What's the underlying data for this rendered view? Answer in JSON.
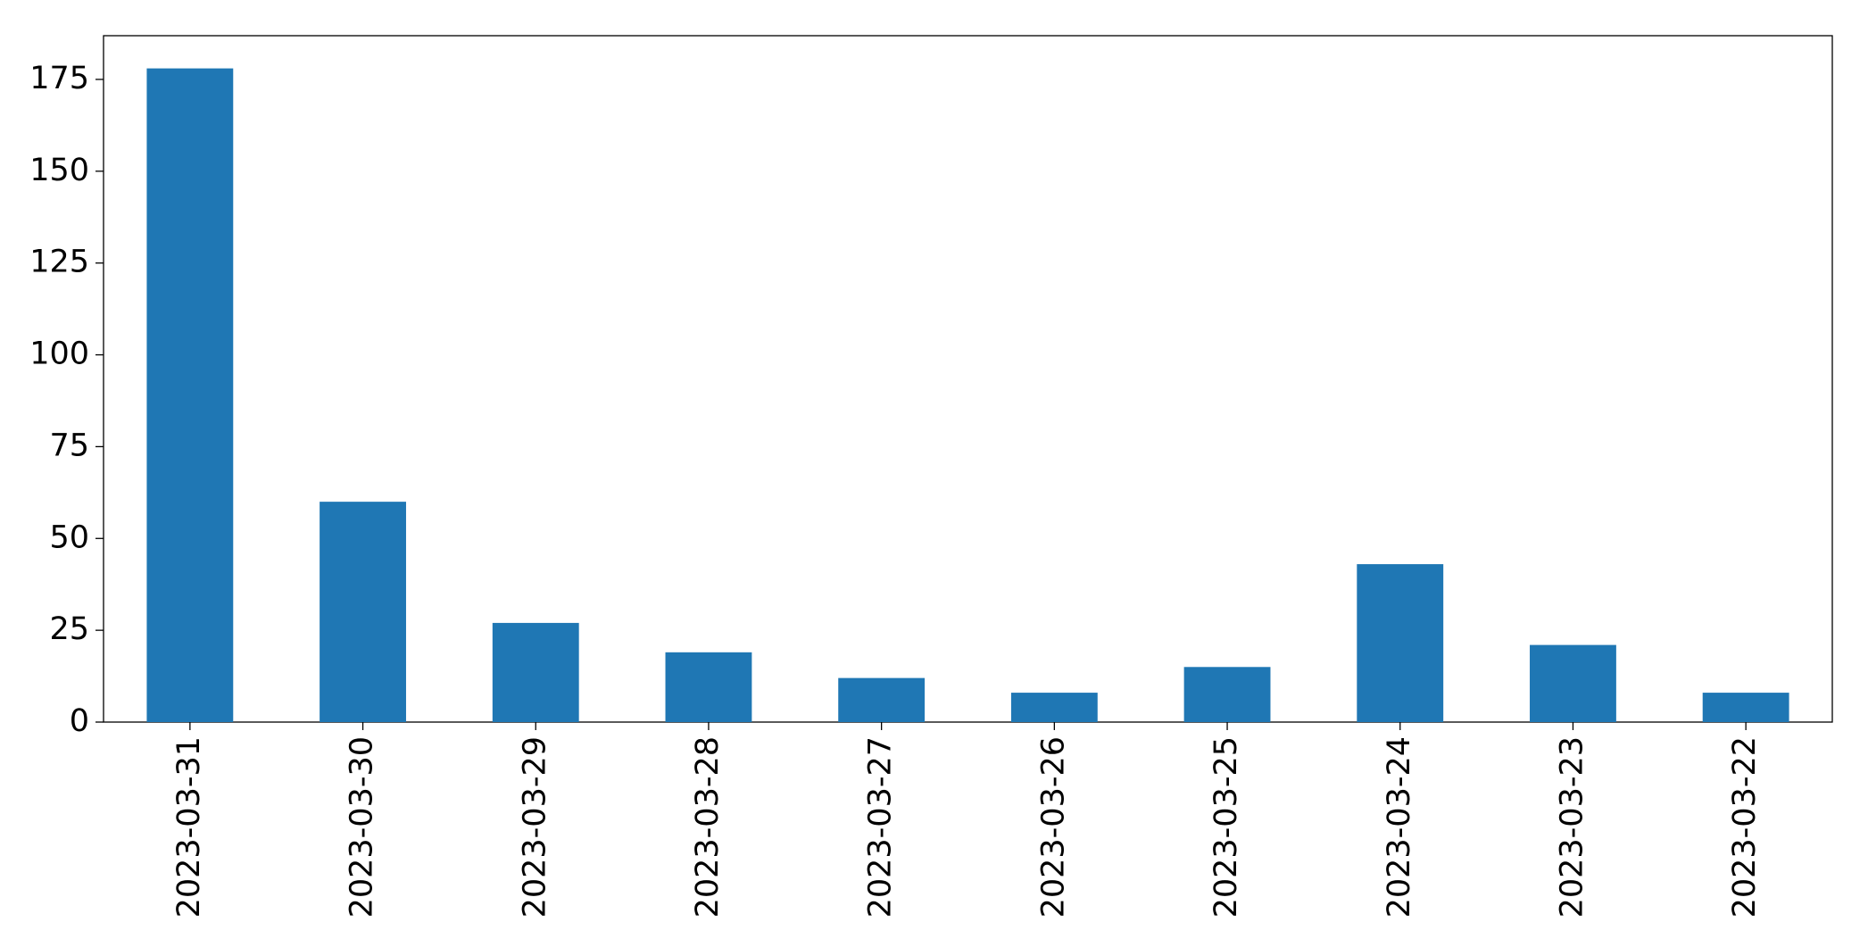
{
  "chart_data": {
    "type": "bar",
    "categories": [
      "2023-03-31",
      "2023-03-30",
      "2023-03-29",
      "2023-03-28",
      "2023-03-27",
      "2023-03-26",
      "2023-03-25",
      "2023-03-24",
      "2023-03-23",
      "2023-03-22"
    ],
    "values": [
      178,
      60,
      27,
      19,
      12,
      8,
      15,
      43,
      21,
      8
    ],
    "color": "#1f77b4",
    "ylim": [
      0,
      186.9
    ],
    "yticks": [
      0,
      25,
      50,
      75,
      100,
      125,
      150,
      175
    ],
    "grid": false
  }
}
